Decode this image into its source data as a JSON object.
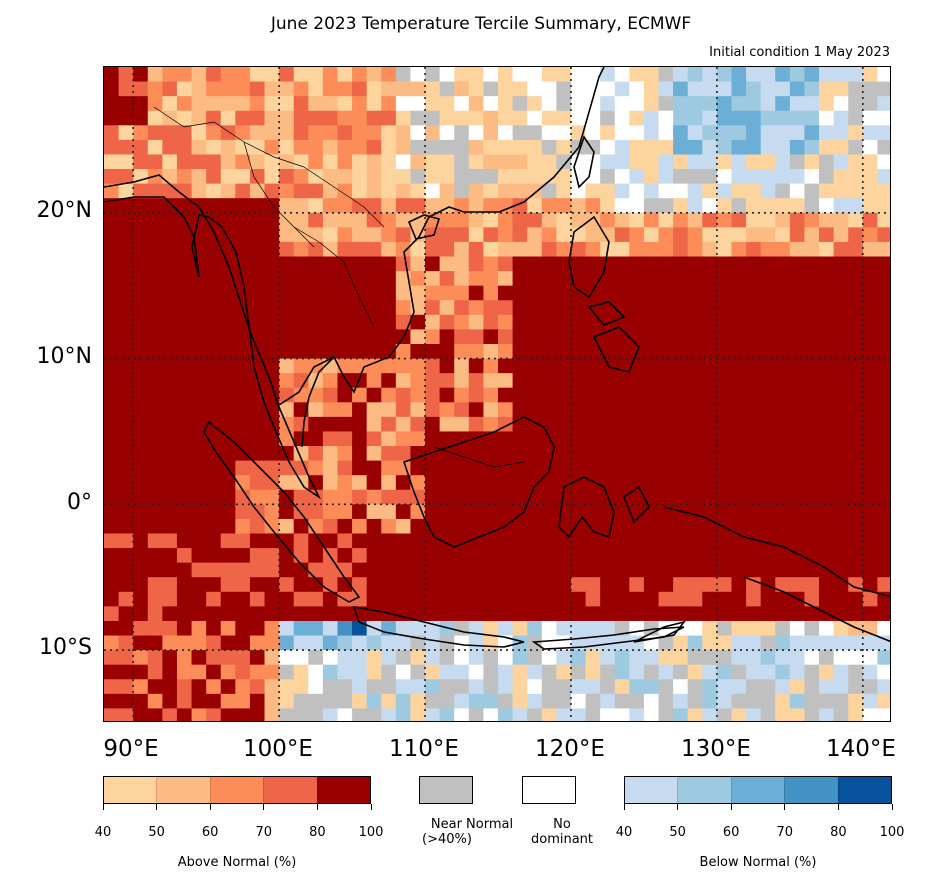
{
  "title": "June 2023 Temperature Tercile Summary, ECMWF",
  "subtitle": "Initial condition 1 May 2023",
  "map": {
    "lat_labels": [
      "20°N",
      "10°N",
      "0°",
      "10°S"
    ],
    "lon_labels": [
      "90°E",
      "100°E",
      "110°E",
      "120°E",
      "130°E",
      "140°E"
    ],
    "extent": {
      "lon_min": 88,
      "lon_max": 142,
      "lat_min": -15,
      "lat_max": 30
    }
  },
  "legend": {
    "above": {
      "label": "Above Normal (%)",
      "ticks": [
        "40",
        "50",
        "60",
        "70",
        "80",
        "100"
      ],
      "colors": [
        "#fdd49e",
        "#fdbb84",
        "#fc8d59",
        "#ef6548",
        "#990000"
      ]
    },
    "near": {
      "label_line1": "Near Normal",
      "label_line2": "(>40%)",
      "color": "#c0c0c0"
    },
    "none": {
      "label_line1": "No",
      "label_line2": "dominant",
      "color": "#ffffff"
    },
    "below": {
      "label": "Below Normal (%)",
      "ticks": [
        "40",
        "50",
        "60",
        "70",
        "80",
        "100"
      ],
      "colors": [
        "#c6dbef",
        "#9ecae1",
        "#6baed6",
        "#4292c6",
        "#08519c"
      ]
    }
  }
}
